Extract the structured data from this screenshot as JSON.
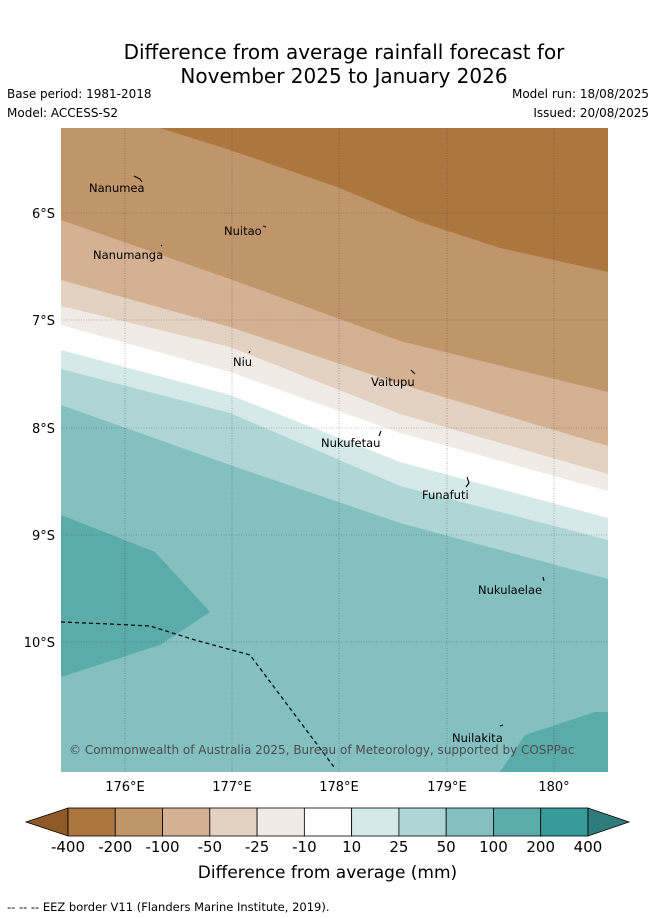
{
  "title_line1": "Difference from average rainfall forecast for",
  "title_line2": "November 2025 to January 2026",
  "base_period": "Base period: 1981-2018",
  "model": "Model: ACCESS-S2",
  "model_run": "Model run: 18/08/2025",
  "issued": "Issued: 20/08/2025",
  "copyright": "© Commonwealth of Australia 2025, Bureau of Meteorology, supported by COSPPac",
  "lat_ticks": [
    "6°S",
    "7°S",
    "8°S",
    "9°S",
    "10°S"
  ],
  "lon_ticks": [
    "176°E",
    "177°E",
    "178°E",
    "179°E",
    "180°"
  ],
  "places": [
    "Nanumea",
    "Nuitao",
    "Nanumanga",
    "Niu",
    "Vaitupu",
    "Nukufetau",
    "Funafuti",
    "Nukulaelae",
    "Nuilakita"
  ],
  "colorbar": {
    "labels": [
      "-400",
      "-200",
      "-100",
      "-50",
      "-25",
      "-10",
      "10",
      "25",
      "50",
      "100",
      "200",
      "400"
    ],
    "colors": [
      "#8f5a27",
      "#ac763f",
      "#c1956a",
      "#d4b192",
      "#e3d1c1",
      "#f1ebe6",
      "#ffffff",
      "#d5e9e9",
      "#aed6d5",
      "#84c0c0",
      "#5babab",
      "#369c9a",
      "#2e7c7b"
    ],
    "title": "Difference from average (mm)"
  },
  "footer": "--  --  -- EEZ border V11 (Flanders Marine Institute, 2019)."
}
